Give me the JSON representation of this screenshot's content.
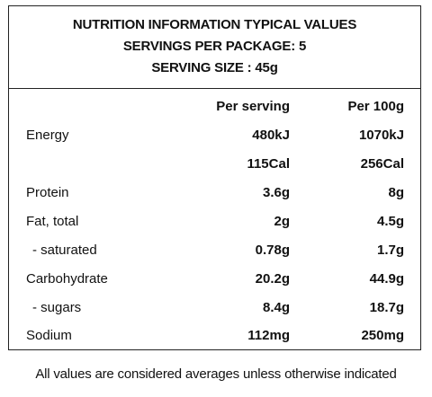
{
  "panel": {
    "title_lines": [
      "NUTRITION INFORMATION TYPICAL VALUES",
      "SERVINGS PER PACKAGE: 5",
      "SERVING SIZE : 45g"
    ],
    "col_headers": {
      "per_serving": "Per serving",
      "per_100g": "Per 100g"
    },
    "rows": [
      {
        "label": "Energy",
        "per_serving": "480kJ",
        "per_100g": "1070kJ"
      },
      {
        "label": "",
        "per_serving": "115Cal",
        "per_100g": "256Cal"
      },
      {
        "label": "Protein",
        "per_serving": "3.6g",
        "per_100g": "8g"
      },
      {
        "label": "Fat, total",
        "per_serving": "2g",
        "per_100g": "4.5g"
      },
      {
        "label": "- saturated",
        "per_serving": "0.78g",
        "per_100g": "1.7g"
      },
      {
        "label": "Carbohydrate",
        "per_serving": "20.2g",
        "per_100g": "44.9g"
      },
      {
        "label": "- sugars",
        "per_serving": "8.4g",
        "per_100g": "18.7g"
      },
      {
        "label": "Sodium",
        "per_serving": "112mg",
        "per_100g": "250mg"
      }
    ]
  },
  "footer": "All values are considered averages unless otherwise indicated"
}
